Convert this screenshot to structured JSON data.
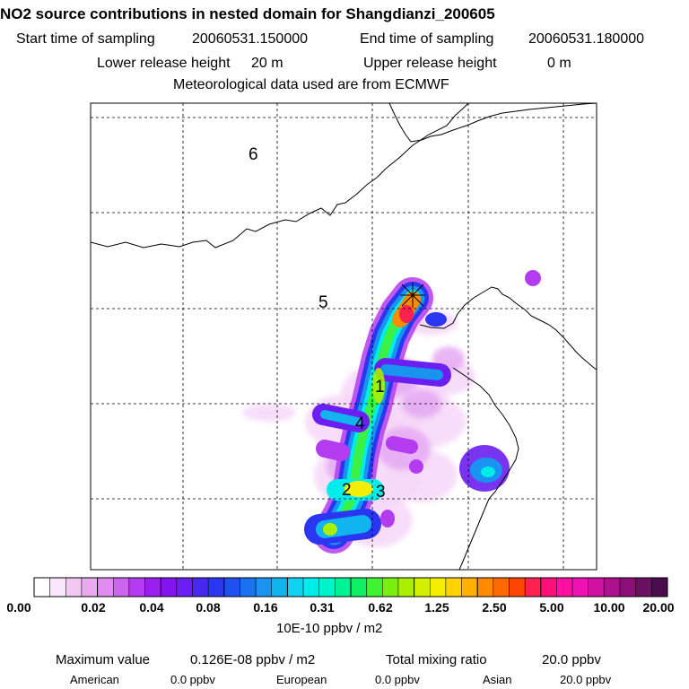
{
  "header": {
    "title": "NO2 source contributions in nested domain for Shangdianzi_200605",
    "start_label": "Start time of sampling",
    "start_value": "20060531.150000",
    "end_label": "End time of sampling",
    "end_value": "20060531.180000",
    "lower_label": "Lower release height",
    "lower_value": "20 m",
    "upper_label": "Upper release height",
    "upper_value": "0 m",
    "met_text": "Meteorological data used are from ECMWF"
  },
  "chart_data": {
    "type": "heatmap",
    "units": "10E-10 ppbv / m2",
    "colorbar_ticks": [
      "0.00",
      "0.02",
      "0.04",
      "0.08",
      "0.16",
      "0.31",
      "0.62",
      "1.25",
      "2.50",
      "5.00",
      "10.00",
      "20.00"
    ],
    "colorbar_colors": [
      "#ffffff",
      "#fae6fa",
      "#f2c8f2",
      "#eaaaf0",
      "#e08cf0",
      "#cc64f0",
      "#b43cf0",
      "#9a20f0",
      "#8214f0",
      "#6a1ef0",
      "#4828f0",
      "#2a36f0",
      "#2050f0",
      "#1a72f0",
      "#1894f0",
      "#12b4f0",
      "#0ed2f0",
      "#00ecea",
      "#00f2c8",
      "#00f296",
      "#10f264",
      "#40f232",
      "#7af010",
      "#aaf000",
      "#d2f000",
      "#f4ee00",
      "#ffd200",
      "#ffb000",
      "#ff8c00",
      "#ff6a00",
      "#ff4600",
      "#ff2250",
      "#ff1078",
      "#ff10a0",
      "#f010b4",
      "#d010a0",
      "#ac108c",
      "#8a1078",
      "#6a1064",
      "#4a0c4c"
    ],
    "region_labels": [
      "1",
      "2",
      "3",
      "4",
      "5",
      "6"
    ],
    "receptor_marker": "x-marker",
    "grid": true
  },
  "footer": {
    "max_label": "Maximum value",
    "max_value": "0.126E-08 ppbv / m2",
    "total_label": "Total mixing ratio",
    "total_value": "20.0 ppbv",
    "american_label": "American",
    "american_value": "0.0 ppbv",
    "european_label": "European",
    "european_value": "0.0 ppbv",
    "asian_label": "Asian",
    "asian_value": "20.0 ppbv"
  }
}
